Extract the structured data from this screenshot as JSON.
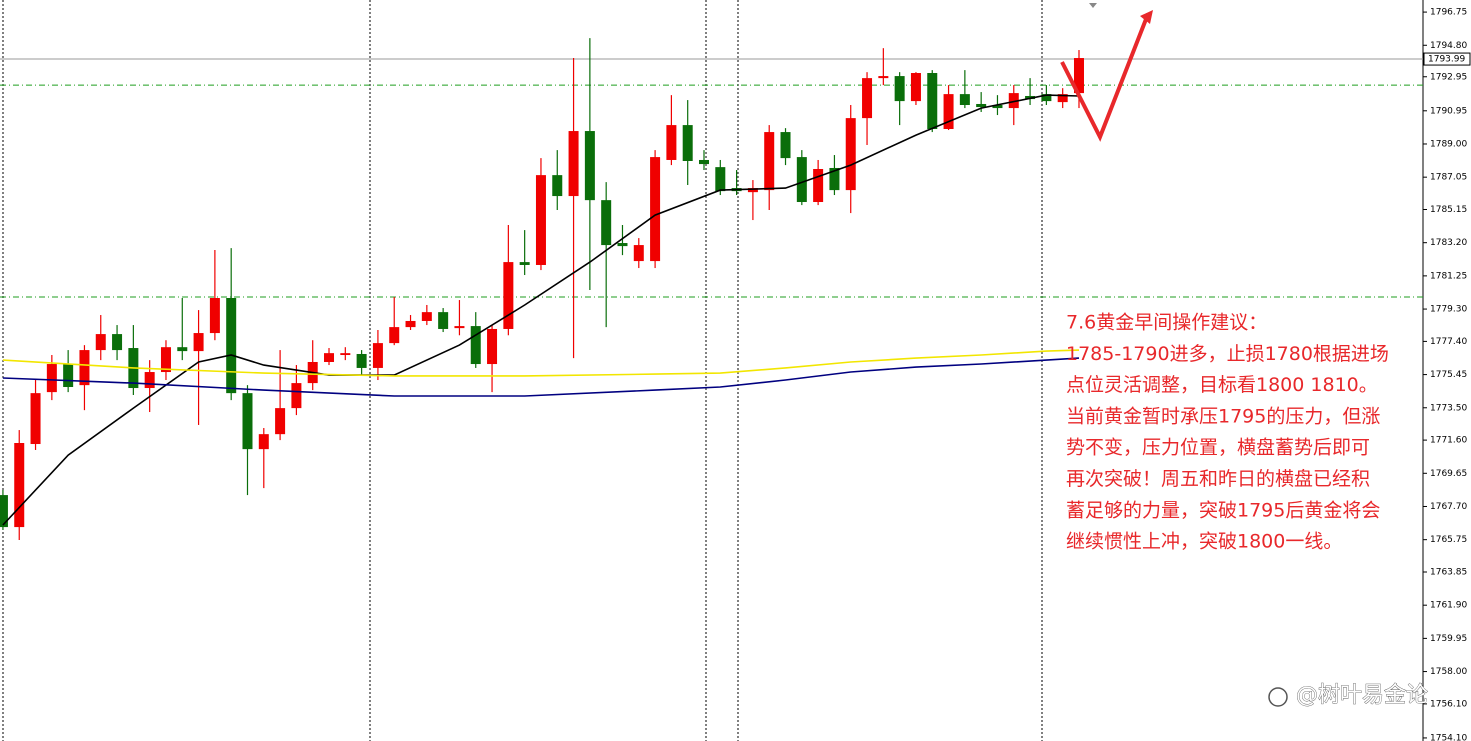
{
  "chart_data": {
    "type": "candlestick",
    "ylim": [
      1753.92,
      1797.46
    ],
    "xlim": [
      -0.18,
      87.1
    ],
    "yticks": [
      1796.75,
      {
        "value": 1794.8,
        "label": "1794.80"
      },
      1792.95,
      1790.95,
      {
        "value": 1789,
        "label": "1789.00"
      },
      1787.05,
      1785.15,
      {
        "value": 1783.2,
        "label": "1783.20"
      },
      1781.25,
      {
        "value": 1779.3,
        "label": "1779.30"
      },
      {
        "value": 1777.4,
        "label": "1777.40"
      },
      1775.45,
      {
        "value": 1773.5,
        "label": "1773.50"
      },
      {
        "value": 1771.6,
        "label": "1771.60"
      },
      1769.65,
      {
        "value": 1767.7,
        "label": "1767.70"
      },
      1765.75,
      1763.85,
      {
        "value": 1761.9,
        "label": "1761.90"
      },
      1759.95,
      {
        "value": 1758,
        "label": "1758.00"
      },
      {
        "value": 1756.1,
        "label": "1756.10"
      },
      {
        "value": 1754.1,
        "label": "1754.10"
      }
    ],
    "open": [
      1768.37,
      1766.49,
      1771.37,
      1774.42,
      1776.07,
      1774.83,
      1776.89,
      1777.83,
      1777.01,
      1774.66,
      1775.6,
      1777.06,
      1776.83,
      1777.89,
      1779.95,
      1774.36,
      1771.07,
      1771.95,
      1773.48,
      1774.95,
      1776.19,
      1776.6,
      1776.66,
      1775.84,
      1777.3,
      1778.24,
      1778.6,
      1779.12,
      1778.18,
      1778.3,
      1776.07,
      1778.13,
      1782.06,
      1781.89,
      1787.17,
      1785.94,
      1789.76,
      1785.7,
      1783.18,
      1782.12,
      1782.12,
      1788.06,
      1790.11,
      1788.06,
      1787.64,
      1786.41,
      1786.17,
      1786.29,
      1789.7,
      1788.23,
      1785.59,
      1787.59,
      1786.29,
      1790.52,
      1792.87,
      1792.99,
      1791.52,
      1793.17,
      1789.88,
      1791.93,
      1791.35,
      1791.29,
      1791.11,
      1791.82,
      1791.93,
      1791.46,
      1791.99
    ],
    "high": [
      1768.67,
      1772.19,
      1775.13,
      1776.6,
      1776.89,
      1777.18,
      1778.95,
      1778.36,
      1778.36,
      1776.3,
      1777.47,
      1779.95,
      1779.24,
      1782.77,
      1782.88,
      1774.83,
      1772.31,
      1776.89,
      1776.01,
      1777.47,
      1777.01,
      1777.06,
      1776.89,
      1778.07,
      1780.01,
      1778.95,
      1779.54,
      1779.36,
      1779.83,
      1779.12,
      1778.36,
      1784.24,
      1783.94,
      1788.17,
      1788.64,
      1794.05,
      1795.22,
      1786.76,
      1784.24,
      1783.47,
      1788.64,
      1791.87,
      1791.58,
      1788.64,
      1788.06,
      1787.47,
      1786.88,
      1790.11,
      1789.93,
      1788.64,
      1788.06,
      1788.35,
      1791.29,
      1793.22,
      1794.63,
      1793.22,
      1793.22,
      1793.34,
      1792.46,
      1793.34,
      1792.05,
      1791.87,
      1792.46,
      1792.87,
      1792.46,
      1792.28,
      1794.52
    ],
    "low": [
      1766.32,
      1765.73,
      1771.02,
      1773.95,
      1774.42,
      1773.36,
      1776.3,
      1776.3,
      1774.25,
      1773.25,
      1775.13,
      1776.3,
      1772.49,
      1777.47,
      1773.95,
      1768.37,
      1768.78,
      1771.6,
      1773.07,
      1774.54,
      1776.01,
      1776.3,
      1775.42,
      1775.13,
      1777.18,
      1778.07,
      1778.36,
      1777.95,
      1777.76,
      1775.84,
      1774.42,
      1777.76,
      1781.3,
      1781.59,
      1785.12,
      1776.42,
      1780.42,
      1778.24,
      1782.47,
      1781.71,
      1781.71,
      1787.76,
      1786.59,
      1787.47,
      1786.0,
      1786.0,
      1784.53,
      1785.12,
      1787.76,
      1785.41,
      1785.41,
      1786.0,
      1784.94,
      1788.94,
      1792.46,
      1790.11,
      1791.29,
      1789.7,
      1789.82,
      1791.11,
      1790.88,
      1790.7,
      1790.11,
      1791.29,
      1791.29,
      1791.11,
      1791.11
    ],
    "close": [
      1766.49,
      1771.43,
      1774.36,
      1776.07,
      1774.72,
      1776.89,
      1777.83,
      1776.89,
      1774.66,
      1775.6,
      1777.06,
      1776.83,
      1777.89,
      1779.95,
      1774.36,
      1771.07,
      1771.95,
      1773.48,
      1774.95,
      1776.19,
      1776.71,
      1776.71,
      1775.84,
      1777.3,
      1778.24,
      1778.6,
      1779.12,
      1778.13,
      1778.3,
      1776.07,
      1778.13,
      1782.06,
      1781.89,
      1787.17,
      1785.94,
      1789.76,
      1785.7,
      1783.06,
      1783.0,
      1783.06,
      1788.23,
      1790.11,
      1788.0,
      1787.82,
      1786.23,
      1786.23,
      1786.41,
      1789.7,
      1788.17,
      1785.59,
      1787.53,
      1786.29,
      1790.52,
      1792.87,
      1792.99,
      1791.52,
      1793.17,
      1789.88,
      1791.93,
      1791.29,
      1791.17,
      1791.11,
      1791.99,
      1791.64,
      1791.52,
      1791.93,
      1794.05
    ],
    "up_color": "#f00000",
    "down_color": "#0a6e0a",
    "ma": [
      {
        "color": "#000000",
        "x": [
          0,
          4,
          8,
          12,
          14,
          16,
          20,
          24,
          28,
          32,
          36,
          40,
          44,
          48,
          52,
          56,
          60,
          64,
          66
        ],
        "values": [
          1766.61,
          1770.72,
          1773.48,
          1776.19,
          1776.6,
          1776.01,
          1775.42,
          1775.42,
          1777.18,
          1779.54,
          1782.06,
          1784.82,
          1786.29,
          1786.41,
          1787.76,
          1789.52,
          1791.11,
          1791.87,
          1791.82
        ]
      },
      {
        "color": "#000080",
        "x": [
          0,
          8,
          16,
          24,
          32,
          40,
          44,
          48,
          52,
          56,
          60,
          64,
          66
        ],
        "values": [
          1775.25,
          1774.95,
          1774.54,
          1774.19,
          1774.19,
          1774.54,
          1774.72,
          1775.13,
          1775.6,
          1775.89,
          1776.07,
          1776.3,
          1776.42
        ]
      },
      {
        "color": "#f2e600",
        "x": [
          0,
          8,
          16,
          24,
          32,
          40,
          44,
          48,
          52,
          56,
          60,
          64,
          66
        ],
        "values": [
          1776.3,
          1775.84,
          1775.54,
          1775.37,
          1775.37,
          1775.48,
          1775.54,
          1775.84,
          1776.19,
          1776.42,
          1776.6,
          1776.83,
          1776.89
        ]
      }
    ],
    "last_price": 1793.99,
    "levels": [
      1792.46,
      1780.01
    ],
    "level_color": "#1f9e1f",
    "annotation": [
      "7.6黄金早间操作建议：",
      "1785-1790进多，止损1780根据进场",
      "点位灵活调整，目标看1800  1810。",
      "当前黄金暂时承压1795的压力，但涨",
      "势不变，压力位置，横盘蓄势后即可",
      "再次突破！周五和昨日的横盘已经积",
      "蓄足够的力量，突破1795后黄金将会",
      "继续惯性上冲，突破1800一线。"
    ],
    "watermark": "@树叶易金论"
  }
}
